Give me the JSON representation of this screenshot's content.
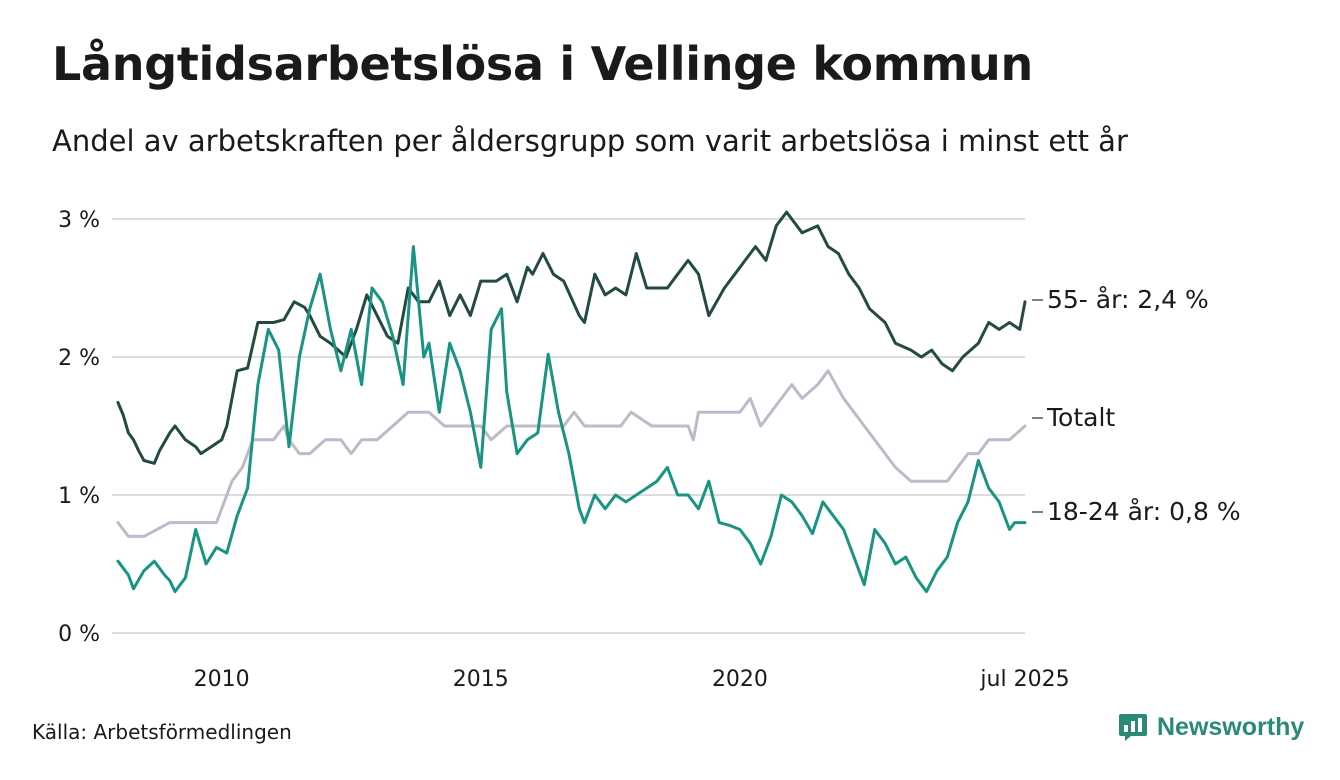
{
  "colors": {
    "series_55": "#234a44",
    "series_total": "#bdbac9",
    "series_18_24": "#1a9482",
    "grid": "#dcdcdc",
    "text": "#1a1a1a",
    "brand": "#2a8a78"
  },
  "brand": {
    "name": "Newsworthy",
    "icon": "bar-chart-speech-bubble-icon"
  },
  "source": "Källa: Arbetsförmedlingen",
  "chart_data": {
    "type": "line",
    "title": "Långtidsarbetslösa i Vellinge kommun",
    "subtitle": "Andel av arbetskraften per åldersgrupp som varit arbetslösa i minst ett år",
    "y_unit": "%",
    "ylim": [
      0,
      3
    ],
    "xlim": [
      2008.0,
      2025.5
    ],
    "grid": true,
    "legend": "end-labels",
    "y_ticks": [
      {
        "value": 0,
        "label": "0 %"
      },
      {
        "value": 1,
        "label": "1 %"
      },
      {
        "value": 2,
        "label": "2 %"
      },
      {
        "value": 3,
        "label": "3 %"
      }
    ],
    "x_ticks": [
      {
        "value": 2010,
        "label": "2010"
      },
      {
        "value": 2015,
        "label": "2015"
      },
      {
        "value": 2020,
        "label": "2020"
      },
      {
        "value": 2025.5,
        "label": "jul 2025"
      }
    ],
    "series": [
      {
        "key": "total",
        "end_label": "Totalt",
        "x": [
          2008.0,
          2008.2,
          2008.5,
          2009.0,
          2009.5,
          2009.9,
          2010.2,
          2010.4,
          2010.6,
          2010.8,
          2011.0,
          2011.2,
          2011.3,
          2011.5,
          2011.7,
          2012.0,
          2012.3,
          2012.5,
          2012.7,
          2013.0,
          2013.3,
          2013.6,
          2014.0,
          2014.3,
          2014.5,
          2014.8,
          2015.0,
          2015.2,
          2015.5,
          2015.8,
          2016.2,
          2016.6,
          2016.8,
          2017.0,
          2017.4,
          2017.7,
          2017.9,
          2018.3,
          2018.7,
          2019.0,
          2019.1,
          2019.2,
          2019.5,
          2019.8,
          2020.0,
          2020.2,
          2020.4,
          2020.6,
          2020.8,
          2021.0,
          2021.2,
          2021.5,
          2021.7,
          2022.0,
          2022.2,
          2022.4,
          2022.6,
          2022.8,
          2023.0,
          2023.3,
          2023.6,
          2023.8,
          2024.0,
          2024.2,
          2024.4,
          2024.6,
          2024.8,
          2025.0,
          2025.2,
          2025.5
        ],
        "values": [
          0.8,
          0.7,
          0.7,
          0.8,
          0.8,
          0.8,
          1.1,
          1.2,
          1.4,
          1.4,
          1.4,
          1.5,
          1.4,
          1.3,
          1.3,
          1.4,
          1.4,
          1.3,
          1.4,
          1.4,
          1.5,
          1.6,
          1.6,
          1.5,
          1.5,
          1.5,
          1.5,
          1.4,
          1.5,
          1.5,
          1.5,
          1.5,
          1.6,
          1.5,
          1.5,
          1.5,
          1.6,
          1.5,
          1.5,
          1.5,
          1.4,
          1.6,
          1.6,
          1.6,
          1.6,
          1.7,
          1.5,
          1.6,
          1.7,
          1.8,
          1.7,
          1.8,
          1.9,
          1.7,
          1.6,
          1.5,
          1.4,
          1.3,
          1.2,
          1.1,
          1.1,
          1.1,
          1.1,
          1.2,
          1.3,
          1.3,
          1.4,
          1.4,
          1.4,
          1.5
        ]
      },
      {
        "key": "age_55",
        "end_label": "55- år: 2,4 %",
        "x": [
          2008.0,
          2008.1,
          2008.2,
          2008.3,
          2008.4,
          2008.5,
          2008.7,
          2008.8,
          2009.0,
          2009.1,
          2009.3,
          2009.5,
          2009.6,
          2009.8,
          2010.0,
          2010.1,
          2010.3,
          2010.5,
          2010.7,
          2011.0,
          2011.2,
          2011.4,
          2011.6,
          2011.7,
          2011.9,
          2012.1,
          2012.4,
          2012.6,
          2012.8,
          2013.0,
          2013.2,
          2013.4,
          2013.6,
          2013.8,
          2014.0,
          2014.2,
          2014.4,
          2014.6,
          2014.8,
          2015.0,
          2015.3,
          2015.5,
          2015.7,
          2015.9,
          2016.0,
          2016.2,
          2016.4,
          2016.6,
          2016.9,
          2017.0,
          2017.2,
          2017.4,
          2017.6,
          2017.8,
          2018.0,
          2018.2,
          2018.4,
          2018.6,
          2018.8,
          2019.0,
          2019.2,
          2019.4,
          2019.7,
          2019.9,
          2020.1,
          2020.3,
          2020.5,
          2020.7,
          2020.9,
          2021.2,
          2021.5,
          2021.7,
          2021.9,
          2022.1,
          2022.3,
          2022.5,
          2022.8,
          2023.0,
          2023.3,
          2023.5,
          2023.7,
          2023.9,
          2024.1,
          2024.3,
          2024.6,
          2024.8,
          2025.0,
          2025.2,
          2025.4,
          2025.5
        ],
        "values": [
          1.67,
          1.58,
          1.45,
          1.4,
          1.32,
          1.25,
          1.23,
          1.32,
          1.45,
          1.5,
          1.4,
          1.35,
          1.3,
          1.35,
          1.4,
          1.5,
          1.9,
          1.92,
          2.25,
          2.25,
          2.27,
          2.4,
          2.36,
          2.3,
          2.15,
          2.1,
          2.0,
          2.2,
          2.45,
          2.3,
          2.15,
          2.1,
          2.5,
          2.4,
          2.4,
          2.55,
          2.3,
          2.45,
          2.3,
          2.55,
          2.55,
          2.6,
          2.4,
          2.65,
          2.6,
          2.75,
          2.6,
          2.55,
          2.3,
          2.25,
          2.6,
          2.45,
          2.5,
          2.45,
          2.75,
          2.5,
          2.5,
          2.5,
          2.6,
          2.7,
          2.6,
          2.3,
          2.5,
          2.6,
          2.7,
          2.8,
          2.7,
          2.95,
          3.05,
          2.9,
          2.95,
          2.8,
          2.75,
          2.6,
          2.5,
          2.35,
          2.25,
          2.1,
          2.05,
          2.0,
          2.05,
          1.95,
          1.9,
          2.0,
          2.1,
          2.25,
          2.2,
          2.25,
          2.2,
          2.4
        ]
      },
      {
        "key": "age_18_24",
        "end_label": "18-24 år: 0,8 %",
        "x": [
          2008.0,
          2008.2,
          2008.3,
          2008.5,
          2008.7,
          2008.9,
          2009.0,
          2009.1,
          2009.3,
          2009.5,
          2009.7,
          2009.9,
          2010.1,
          2010.3,
          2010.5,
          2010.7,
          2010.9,
          2011.1,
          2011.3,
          2011.5,
          2011.7,
          2011.9,
          2012.1,
          2012.3,
          2012.5,
          2012.7,
          2012.9,
          2013.1,
          2013.3,
          2013.5,
          2013.7,
          2013.9,
          2014.0,
          2014.2,
          2014.4,
          2014.6,
          2014.8,
          2015.0,
          2015.2,
          2015.4,
          2015.5,
          2015.7,
          2015.9,
          2016.1,
          2016.3,
          2016.5,
          2016.7,
          2016.9,
          2017.0,
          2017.2,
          2017.4,
          2017.6,
          2017.8,
          2018.0,
          2018.2,
          2018.4,
          2018.6,
          2018.8,
          2019.0,
          2019.2,
          2019.4,
          2019.6,
          2019.8,
          2020.0,
          2020.2,
          2020.4,
          2020.6,
          2020.8,
          2021.0,
          2021.2,
          2021.4,
          2021.6,
          2021.8,
          2022.0,
          2022.2,
          2022.4,
          2022.6,
          2022.8,
          2023.0,
          2023.2,
          2023.4,
          2023.6,
          2023.8,
          2024.0,
          2024.2,
          2024.4,
          2024.6,
          2024.8,
          2025.0,
          2025.2,
          2025.3,
          2025.5
        ],
        "values": [
          0.52,
          0.42,
          0.32,
          0.45,
          0.52,
          0.42,
          0.38,
          0.3,
          0.4,
          0.75,
          0.5,
          0.62,
          0.58,
          0.85,
          1.05,
          1.8,
          2.2,
          2.05,
          1.35,
          2.0,
          2.35,
          2.6,
          2.2,
          1.9,
          2.2,
          1.8,
          2.5,
          2.4,
          2.15,
          1.8,
          2.8,
          2.0,
          2.1,
          1.6,
          2.1,
          1.9,
          1.6,
          1.2,
          2.2,
          2.35,
          1.75,
          1.3,
          1.4,
          1.45,
          2.02,
          1.6,
          1.3,
          0.9,
          0.8,
          1.0,
          0.9,
          1.0,
          0.95,
          1.0,
          1.05,
          1.1,
          1.2,
          1.0,
          1.0,
          0.9,
          1.1,
          0.8,
          0.78,
          0.75,
          0.65,
          0.5,
          0.7,
          1.0,
          0.95,
          0.85,
          0.72,
          0.95,
          0.85,
          0.75,
          0.55,
          0.35,
          0.75,
          0.65,
          0.5,
          0.55,
          0.4,
          0.3,
          0.45,
          0.55,
          0.8,
          0.95,
          1.25,
          1.05,
          0.95,
          0.75,
          0.8,
          0.8
        ]
      }
    ]
  }
}
